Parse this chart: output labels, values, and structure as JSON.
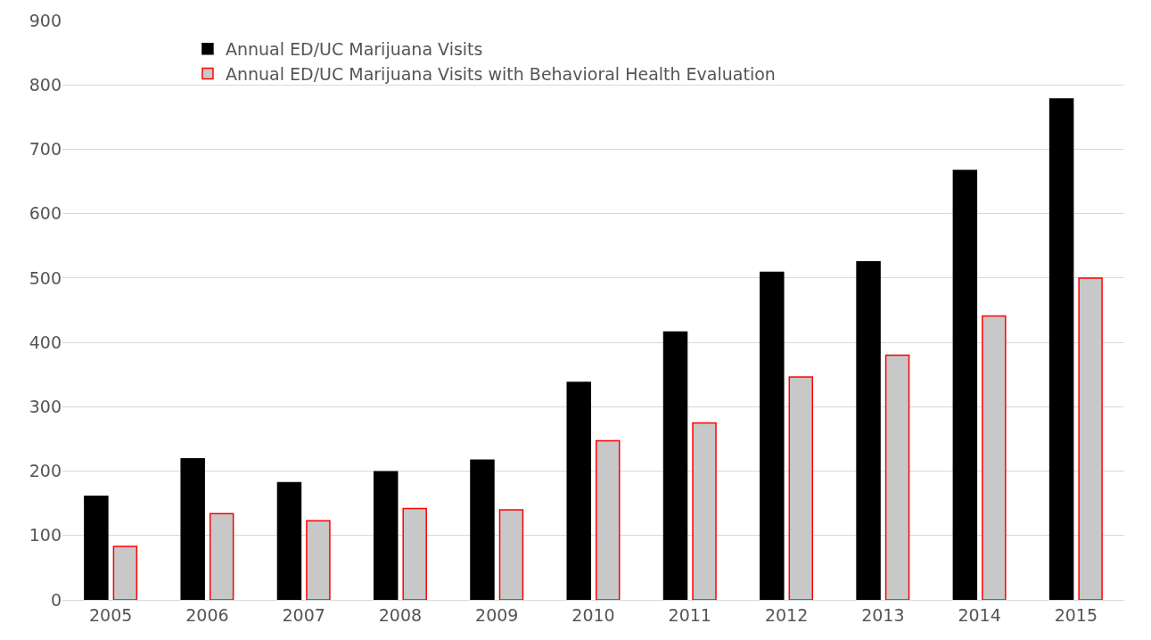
{
  "chart_data": {
    "type": "bar",
    "categories": [
      "2005",
      "2006",
      "2007",
      "2008",
      "2009",
      "2010",
      "2011",
      "2012",
      "2013",
      "2014",
      "2015"
    ],
    "series": [
      {
        "name": "Annual ED/UC Marijuana Visits",
        "color": "#000000",
        "values": [
          161,
          219,
          182,
          199,
          217,
          338,
          416,
          509,
          525,
          667,
          778
        ]
      },
      {
        "name": "Annual ED/UC Marijuana Visits with Behavioral Health Evaluation",
        "color": "#c8c8c8",
        "values": [
          83,
          134,
          123,
          142,
          140,
          247,
          275,
          346,
          380,
          441,
          500
        ]
      }
    ],
    "ylim": [
      0,
      900
    ],
    "yticks": [
      0,
      100,
      200,
      300,
      400,
      500,
      600,
      700,
      800,
      900
    ],
    "grid": "y",
    "legend": "top left"
  }
}
